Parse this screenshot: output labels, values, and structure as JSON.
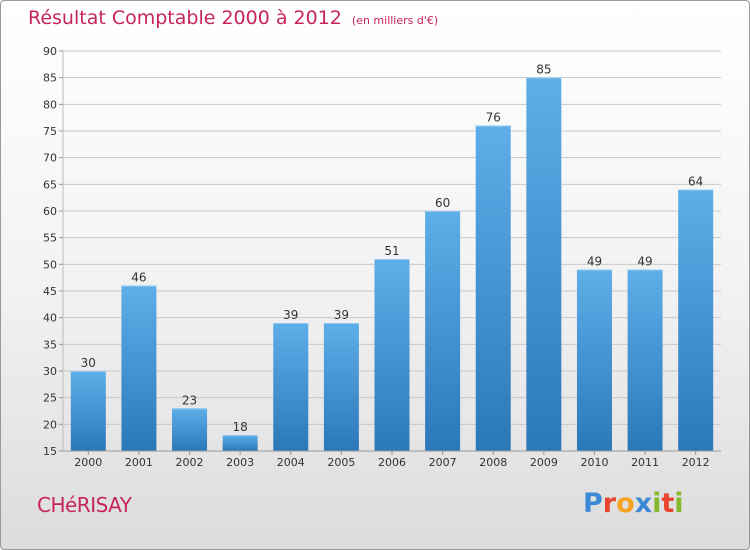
{
  "title": "Résultat Comptable 2000 à 2012",
  "subtitle": "(en milliers d'€)",
  "town": "CHéRISAY",
  "logo": {
    "p": "P",
    "r": "r",
    "o": "o",
    "x": "x",
    "i": "i",
    "t": "t",
    "i2": "i"
  },
  "colors": {
    "accent": "#c7245f",
    "bar_top": "#5eaee9",
    "bar_bottom": "#2b78b8",
    "grid": "#c8c8c8",
    "axis_text": "#333333"
  },
  "chart_data": {
    "type": "bar",
    "title": "Résultat Comptable 2000 à 2012",
    "ylabel": "en milliers d'€",
    "xlabel": "",
    "categories": [
      "2000",
      "2001",
      "2002",
      "2003",
      "2004",
      "2005",
      "2006",
      "2007",
      "2008",
      "2009",
      "2010",
      "2011",
      "2012"
    ],
    "values": [
      30,
      46,
      23,
      18,
      39,
      39,
      51,
      60,
      76,
      85,
      49,
      49,
      64
    ],
    "ylim": [
      15,
      90
    ],
    "yticks": [
      15,
      20,
      25,
      30,
      35,
      40,
      45,
      50,
      55,
      60,
      65,
      70,
      75,
      80,
      85,
      90
    ],
    "grid": true,
    "legend": "none"
  }
}
